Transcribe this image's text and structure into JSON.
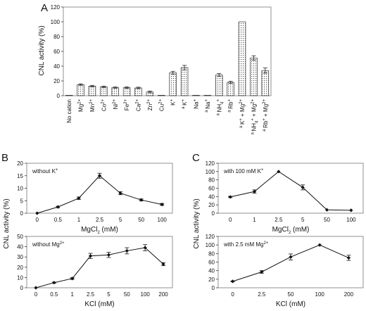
{
  "figure": {
    "panel_letters": [
      "A",
      "B",
      "C"
    ]
  },
  "chart_data": [
    {
      "panel": "A",
      "type": "bar",
      "title": "",
      "xlabel": "",
      "ylabel": "CNL activity (%)",
      "ylim": [
        0,
        120
      ],
      "yticks": [
        0,
        20,
        40,
        60,
        80,
        100,
        120
      ],
      "grid": false,
      "pattern": "dotted",
      "categories": [
        {
          "sup_pre": "",
          "main": "No cation",
          "sub": "",
          "sup": ""
        },
        {
          "sup_pre": "",
          "main": "Mg",
          "sub": "",
          "sup": "2+"
        },
        {
          "sup_pre": "",
          "main": "Mn",
          "sub": "",
          "sup": "2+"
        },
        {
          "sup_pre": "",
          "main": "Co",
          "sub": "",
          "sup": "2+"
        },
        {
          "sup_pre": "",
          "main": "Ni",
          "sub": "",
          "sup": "2+"
        },
        {
          "sup_pre": "",
          "main": "Fe",
          "sub": "",
          "sup": "2+"
        },
        {
          "sup_pre": "",
          "main": "Ca",
          "sub": "",
          "sup": "2+"
        },
        {
          "sup_pre": "",
          "main": "Zn",
          "sub": "",
          "sup": "2+"
        },
        {
          "sup_pre": "",
          "main": "Cu",
          "sub": "",
          "sup": "2+"
        },
        {
          "sup_pre": "",
          "main": "K",
          "sub": "",
          "sup": "+"
        },
        {
          "sup_pre": "a",
          "main": "K",
          "sub": "",
          "sup": "+"
        },
        {
          "sup_pre": "",
          "main": "Na",
          "sub": "",
          "sup": "+"
        },
        {
          "sup_pre": "a",
          "main": "Na",
          "sub": "",
          "sup": "+"
        },
        {
          "sup_pre": "a",
          "main": "NH",
          "sub": "4",
          "sup": "+"
        },
        {
          "sup_pre": "a",
          "main": "Rb",
          "sub": "",
          "sup": "+"
        },
        {
          "sup_pre": "a",
          "main": "K",
          "sub": "",
          "sup": "+",
          "rest": " + Mg",
          "rest_sup": "2+"
        },
        {
          "sup_pre": "a",
          "main": "NH",
          "sub": "4",
          "sup": "+",
          "rest": " + Mg",
          "rest_sup": "2+"
        },
        {
          "sup_pre": "a",
          "main": "Rb",
          "sub": "",
          "sup": "+",
          "rest": " + Mg",
          "rest_sup": "2+"
        }
      ],
      "values": [
        0,
        15,
        13,
        12,
        11,
        11,
        10.5,
        5,
        0,
        31,
        38,
        0,
        0,
        28,
        18,
        100,
        51,
        34
      ],
      "errors": [
        0,
        1,
        1,
        1,
        0.8,
        1,
        1,
        1.2,
        0,
        2,
        3,
        0,
        0,
        2,
        1.5,
        0,
        3,
        3.5
      ]
    },
    {
      "panel": "B",
      "type": "line",
      "annotation": {
        "text": "without K",
        "sup": "+"
      },
      "xlabel": {
        "text": "MgCl",
        "sub": "2",
        "tail": " (mM)"
      },
      "ylabel": "",
      "x": [
        "0",
        "0.5",
        "1",
        "2.5",
        "5",
        "50",
        "100"
      ],
      "values": [
        0,
        2.5,
        6,
        15,
        8,
        5.3,
        3.5
      ],
      "errors": [
        0,
        0.3,
        0.5,
        1,
        0.6,
        0.4,
        0.4
      ],
      "ylim": [
        0,
        20
      ],
      "yticks": [
        0,
        5,
        10,
        15,
        20
      ]
    },
    {
      "panel": "B",
      "type": "line",
      "annotation": {
        "text": "without Mg",
        "sup": "2+"
      },
      "xlabel": {
        "text": "KCl (mM)",
        "sub": "",
        "tail": ""
      },
      "ylabel": "",
      "x": [
        "0",
        "0.5",
        "1",
        "2.5",
        "5",
        "50",
        "100",
        "200"
      ],
      "values": [
        0,
        5,
        9,
        31,
        32,
        36,
        39,
        23
      ],
      "errors": [
        0,
        0.5,
        0.8,
        2.5,
        2.5,
        3,
        3,
        1.5
      ],
      "ylim": [
        0,
        50
      ],
      "yticks": [
        0,
        10,
        20,
        30,
        40,
        50
      ]
    },
    {
      "panel": "C",
      "type": "line",
      "annotation": {
        "text": "with 100 mM K",
        "sup": "+"
      },
      "xlabel": {
        "text": "MgCl",
        "sub": "2",
        "tail": " (mM)"
      },
      "ylabel": "",
      "x": [
        "0",
        "1",
        "2.5",
        "5",
        "50",
        "100"
      ],
      "values": [
        39,
        52,
        100,
        62,
        8,
        7
      ],
      "errors": [
        1.5,
        4,
        0,
        6,
        0,
        0
      ],
      "ylim": [
        0,
        120
      ],
      "yticks": [
        0,
        20,
        40,
        60,
        80,
        100,
        120
      ]
    },
    {
      "panel": "C",
      "type": "line",
      "annotation": {
        "text": "with 2.5 mM Mg",
        "sup": "2+"
      },
      "xlabel": {
        "text": "KCl (mM)",
        "sub": "",
        "tail": ""
      },
      "ylabel": "",
      "x": [
        "0",
        "2.5",
        "50",
        "100",
        "200"
      ],
      "values": [
        15,
        37,
        72,
        100,
        70
      ],
      "errors": [
        1,
        3,
        7,
        0,
        6
      ],
      "ylim": [
        0,
        120
      ],
      "yticks": [
        0,
        20,
        40,
        60,
        80,
        100,
        120
      ]
    }
  ],
  "shared_labels": {
    "B_ylabel": "CNL activity (%)",
    "C_ylabel": "CNL activity (%)"
  }
}
